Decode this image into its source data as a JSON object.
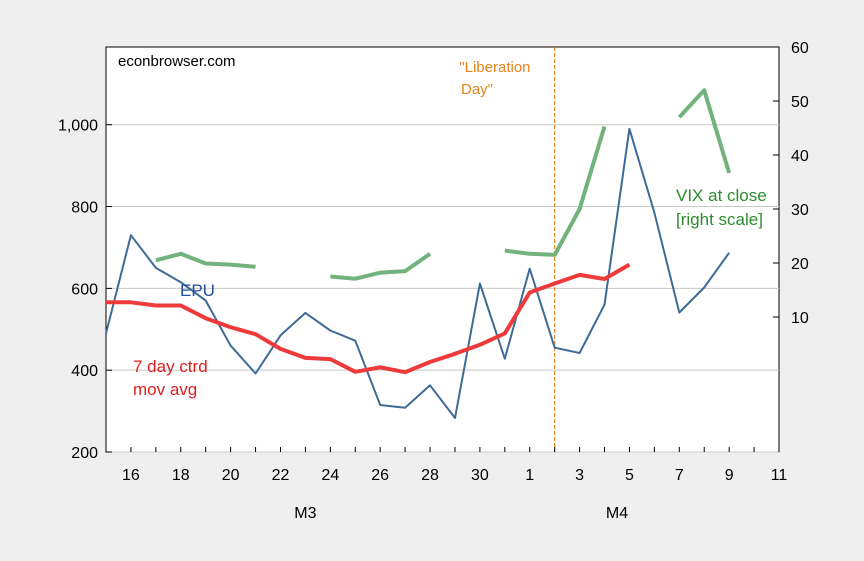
{
  "chart_data": {
    "type": "line",
    "source": "econbrowser.com",
    "categories": [
      "15",
      "16",
      "17",
      "18",
      "19",
      "20",
      "21",
      "22",
      "23",
      "24",
      "25",
      "26",
      "27",
      "28",
      "29",
      "30",
      "31",
      "1",
      "2",
      "3",
      "4",
      "5",
      "6",
      "7",
      "8",
      "9",
      "10",
      "11"
    ],
    "x_tick_labels": [
      "16",
      "18",
      "20",
      "22",
      "24",
      "26",
      "28",
      "30",
      "1",
      "3",
      "5",
      "7",
      "9",
      "11"
    ],
    "month_labels": [
      "M3",
      "M4"
    ],
    "left_axis": {
      "ticks": [
        "200",
        "400",
        "600",
        "800",
        "1,000"
      ],
      "ylim": [
        200,
        1190
      ]
    },
    "right_axis": {
      "ticks": [
        "10",
        "20",
        "30",
        "40",
        "50",
        "60"
      ],
      "ylim": [
        -15,
        60
      ]
    },
    "series": [
      {
        "name": "EPU",
        "axis": "left",
        "color": "#3f6b97",
        "values": [
          490,
          730,
          650,
          615,
          570,
          460,
          392,
          485,
          540,
          497,
          472,
          315,
          308,
          363,
          283,
          612,
          428,
          648,
          455,
          442,
          560,
          990,
          785,
          541,
          602,
          687,
          null,
          null
        ]
      },
      {
        "name": "7 day ctrd mov avg",
        "axis": "left",
        "color": "#ee3a3a",
        "values": [
          566,
          566,
          558,
          558,
          527,
          505,
          488,
          452,
          430,
          427,
          396,
          407,
          395,
          420,
          440,
          462,
          490,
          590,
          612,
          633,
          623,
          658,
          null,
          null,
          null,
          null,
          null,
          null
        ]
      },
      {
        "name": "VIX at close [right scale]",
        "axis": "right",
        "color": "#72b27c",
        "values": [
          null,
          null,
          20.5,
          21.7,
          19.9,
          19.7,
          19.3,
          null,
          null,
          17.5,
          17.1,
          18.2,
          18.5,
          21.7,
          null,
          null,
          22.3,
          21.7,
          21.5,
          30,
          45.3,
          null,
          null,
          47,
          52,
          36.7,
          null,
          null
        ]
      }
    ],
    "annotations": {
      "event_line_at": "2",
      "event_label_lines": [
        "\"Liberation",
        "Day\""
      ],
      "epu_label": "EPU",
      "mov_avg_label_lines": [
        "7 day ctrd",
        "mov avg"
      ],
      "vix_label_lines": [
        "VIX at close",
        "[right scale]"
      ]
    },
    "colors": {
      "epu": "#3f6b97",
      "mov_avg": "#ee3a3a",
      "vix": "#72b27c",
      "vix_label": "#2e8b2e",
      "event": "#e8841a",
      "grid": "#c8c8c8"
    },
    "grid": true
  }
}
